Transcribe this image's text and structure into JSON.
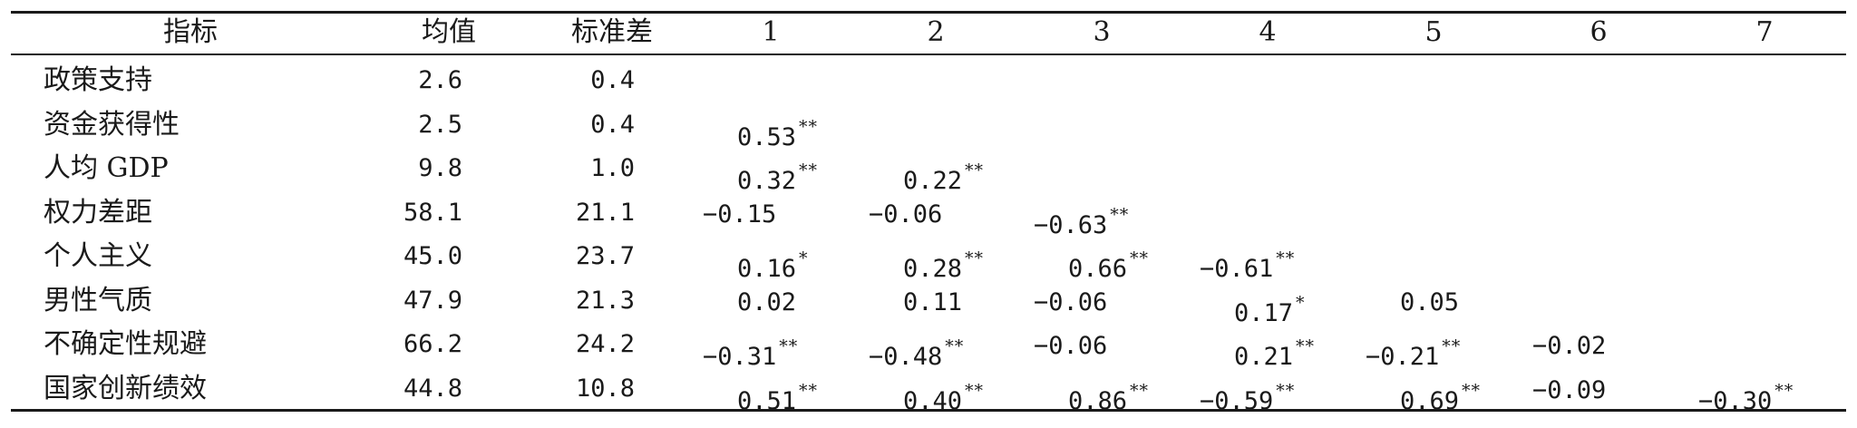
{
  "headers": [
    "指标",
    "均值",
    "标准差",
    "1",
    "2",
    "3",
    "4",
    "5",
    "6",
    "7"
  ],
  "rows": [
    {
      "label": "政策支持",
      "mean": "2.6",
      "sd": "0.4",
      "corr": []
    },
    {
      "label": "资金获得性",
      "mean": "2.5",
      "sd": "0.4",
      "corr": [
        {
          "v": "0.53",
          "s": "**"
        }
      ]
    },
    {
      "label": "人均 GDP",
      "mean": "9.8",
      "sd": "1.0",
      "corr": [
        {
          "v": "0.32",
          "s": "**"
        },
        {
          "v": "0.22",
          "s": "**"
        }
      ]
    },
    {
      "label": "权力差距",
      "mean": "58.1",
      "sd": "21.1",
      "corr": [
        {
          "v": "−0.15",
          "s": ""
        },
        {
          "v": "−0.06",
          "s": ""
        },
        {
          "v": "−0.63",
          "s": "**"
        }
      ]
    },
    {
      "label": "个人主义",
      "mean": "45.0",
      "sd": "23.7",
      "corr": [
        {
          "v": "0.16",
          "s": "*"
        },
        {
          "v": "0.28",
          "s": "**"
        },
        {
          "v": "0.66",
          "s": "**"
        },
        {
          "v": "−0.61",
          "s": "**"
        }
      ]
    },
    {
      "label": "男性气质",
      "mean": "47.9",
      "sd": "21.3",
      "corr": [
        {
          "v": "0.02",
          "s": ""
        },
        {
          "v": "0.11",
          "s": ""
        },
        {
          "v": "−0.06",
          "s": ""
        },
        {
          "v": "0.17",
          "s": "*"
        },
        {
          "v": "0.05",
          "s": ""
        }
      ]
    },
    {
      "label": "不确定性规避",
      "mean": "66.2",
      "sd": "24.2",
      "corr": [
        {
          "v": "−0.31",
          "s": "**"
        },
        {
          "v": "−0.48",
          "s": "**"
        },
        {
          "v": "−0.06",
          "s": ""
        },
        {
          "v": "0.21",
          "s": "**"
        },
        {
          "v": "−0.21",
          "s": "**"
        },
        {
          "v": "−0.02",
          "s": ""
        }
      ]
    },
    {
      "label": "国家创新绩效",
      "mean": "44.8",
      "sd": "10.8",
      "corr": [
        {
          "v": "0.51",
          "s": "**"
        },
        {
          "v": "0.40",
          "s": "**"
        },
        {
          "v": "0.86",
          "s": "**"
        },
        {
          "v": "−0.59",
          "s": "**"
        },
        {
          "v": "0.69",
          "s": "**"
        },
        {
          "v": "−0.09",
          "s": ""
        },
        {
          "v": "−0.30",
          "s": "**"
        }
      ]
    }
  ]
}
